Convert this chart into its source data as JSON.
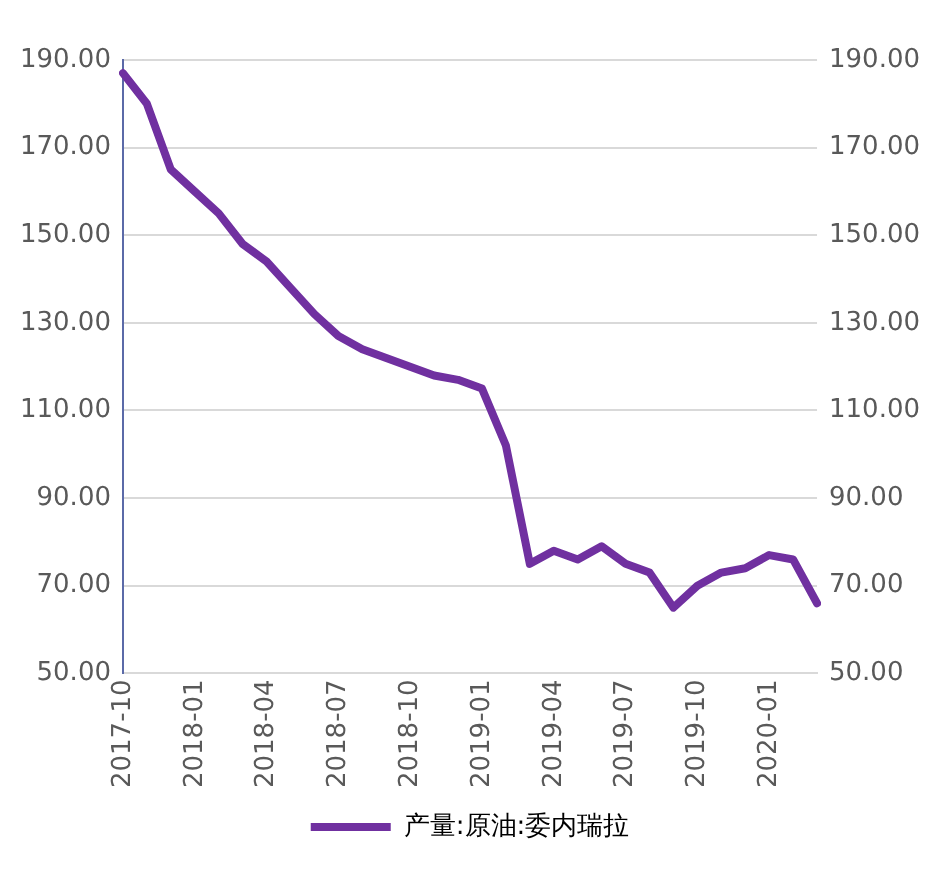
{
  "chart_data": {
    "type": "line",
    "categories": [
      "2017-10",
      null,
      null,
      "2018-01",
      null,
      null,
      "2018-04",
      null,
      null,
      "2018-07",
      null,
      null,
      "2018-10",
      null,
      null,
      "2019-01",
      null,
      null,
      "2019-04",
      null,
      null,
      "2019-07",
      null,
      null,
      "2019-10",
      null,
      null,
      "2020-01",
      null,
      null
    ],
    "series": [
      {
        "name": "产量:原油:委内瑞拉",
        "color": "#7030a0",
        "values": [
          187,
          180,
          165,
          160,
          155,
          148,
          144,
          138,
          132,
          127,
          124,
          122,
          120,
          118,
          117,
          115,
          102,
          75,
          78,
          76,
          79,
          75,
          73,
          65,
          70,
          73,
          74,
          77,
          76,
          66
        ]
      }
    ],
    "ylim": [
      50,
      190
    ],
    "yticks": [
      {
        "value": 50,
        "label": "50.00"
      },
      {
        "value": 70,
        "label": "70.00"
      },
      {
        "value": 90,
        "label": "90.00"
      },
      {
        "value": 110,
        "label": "110.00"
      },
      {
        "value": 130,
        "label": "130.00"
      },
      {
        "value": 150,
        "label": "150.00"
      },
      {
        "value": 170,
        "label": "170.00"
      },
      {
        "value": 190,
        "label": "190.00"
      }
    ],
    "y2lim": [
      50,
      190
    ],
    "y2ticks": [
      {
        "value": 50,
        "label": "50.00"
      },
      {
        "value": 70,
        "label": "70.00"
      },
      {
        "value": 90,
        "label": "90.00"
      },
      {
        "value": 110,
        "label": "110.00"
      },
      {
        "value": 130,
        "label": "130.00"
      },
      {
        "value": 150,
        "label": "150.00"
      },
      {
        "value": 170,
        "label": "170.00"
      },
      {
        "value": 190,
        "label": "190.00"
      }
    ],
    "grid": "y",
    "legend": "bottom",
    "marker": "none",
    "line_style": "solid"
  }
}
